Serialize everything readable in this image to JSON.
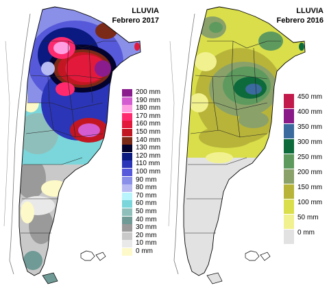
{
  "maps": [
    {
      "title_line1": "LLUVIA",
      "title_line2": "Febrero 2017",
      "legend": [
        {
          "label": "200 mm",
          "color": "#8a1c8e"
        },
        {
          "label": "190 mm",
          "color": "#d35cd0"
        },
        {
          "label": "180 mm",
          "color": "#ff9ee0"
        },
        {
          "label": "170 mm",
          "color": "#ff2a6e"
        },
        {
          "label": "160 mm",
          "color": "#e3193c"
        },
        {
          "label": "150 mm",
          "color": "#c21722"
        },
        {
          "label": "140 mm",
          "color": "#7a2a16"
        },
        {
          "label": "130 mm",
          "color": "#03032e"
        },
        {
          "label": "120 mm",
          "color": "#0a1a80"
        },
        {
          "label": "110 mm",
          "color": "#2b35b8"
        },
        {
          "label": "100 mm",
          "color": "#5659d9"
        },
        {
          "label": "90 mm",
          "color": "#8a8fe8"
        },
        {
          "label": "80 mm",
          "color": "#b7bbf2"
        },
        {
          "label": "70 mm",
          "color": "#b8f4fb"
        },
        {
          "label": "60 mm",
          "color": "#7ad6da"
        },
        {
          "label": "50 mm",
          "color": "#8fbfbb"
        },
        {
          "label": "40 mm",
          "color": "#6f9a96"
        },
        {
          "label": "30 mm",
          "color": "#9a9a9a"
        },
        {
          "label": "20 mm",
          "color": "#c9c9c9"
        },
        {
          "label": "10 mm",
          "color": "#e9e9e9"
        },
        {
          "label": "0 mm",
          "color": "#fdf9c8"
        }
      ]
    },
    {
      "title_line1": "LLUVIA",
      "title_line2": "Febrero 2016",
      "legend": [
        {
          "label": "450 mm",
          "color": "#c21b4b"
        },
        {
          "label": "400 mm",
          "color": "#8a1a88"
        },
        {
          "label": "350 mm",
          "color": "#3a6a9e"
        },
        {
          "label": "300 mm",
          "color": "#0d6a3b"
        },
        {
          "label": "250 mm",
          "color": "#5e9a5e"
        },
        {
          "label": "200 mm",
          "color": "#8aa16a"
        },
        {
          "label": "150 mm",
          "color": "#b8b43a"
        },
        {
          "label": "100 mm",
          "color": "#d9de4a"
        },
        {
          "label": "50 mm",
          "color": "#f2f190"
        },
        {
          "label": "0 mm",
          "color": "#e2e2e2"
        }
      ]
    }
  ]
}
